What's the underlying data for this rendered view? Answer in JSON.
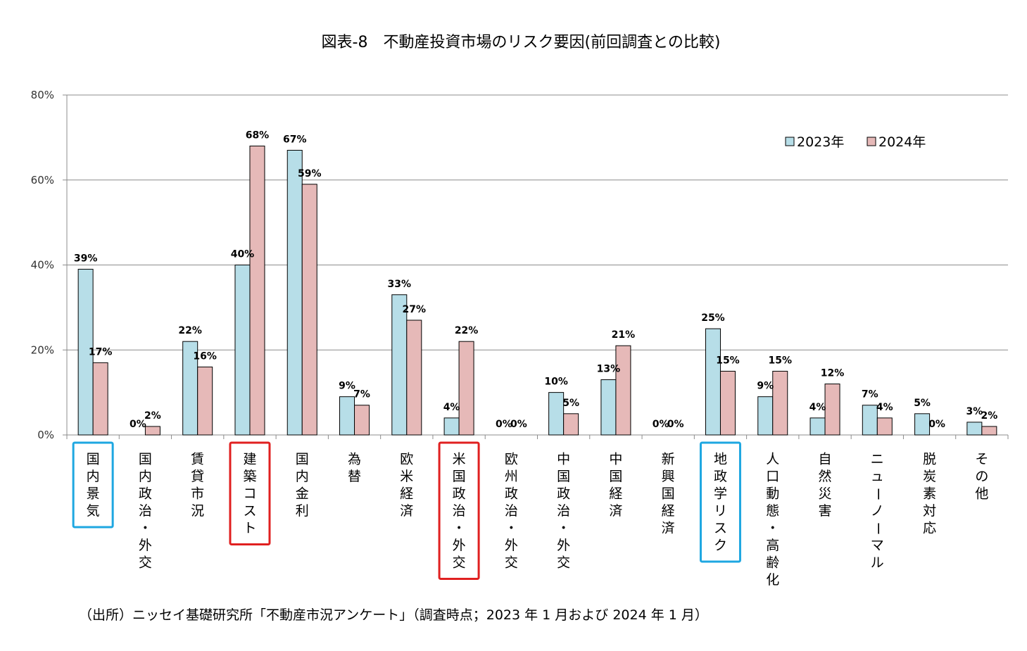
{
  "chart_data": {
    "type": "bar",
    "title": "図表-8　不動産投資市場のリスク要因(前回調査との比較)",
    "xlabel": "",
    "ylabel": "",
    "ylim": [
      0,
      80
    ],
    "yticks": [
      "0%",
      "20%",
      "40%",
      "60%",
      "80%"
    ],
    "grid": true,
    "legend_position": "top-right",
    "categories": [
      "国内景気",
      "国内政治・外交",
      "賃貸市況",
      "建築コスト",
      "国内金利",
      "為替",
      "欧米経済",
      "米国政治・外交",
      "欧州政治・外交",
      "中国政治・外交",
      "中国経済",
      "新興国経済",
      "地政学リスク",
      "人口動態・高齢化",
      "自然災害",
      "ニューノーマル",
      "脱炭素対応",
      "その他"
    ],
    "series": [
      {
        "name": "2023年",
        "color": "#B7DEE8",
        "values": [
          39,
          0,
          22,
          40,
          67,
          9,
          33,
          4,
          0,
          10,
          13,
          0,
          25,
          9,
          4,
          7,
          5,
          3
        ],
        "labels": [
          "39%",
          "0%",
          "22%",
          "40%",
          "67%",
          "9%",
          "33%",
          "4%",
          "0%",
          "10%",
          "13%",
          "0%",
          "25%",
          "9%",
          "4%",
          "7%",
          "5%",
          "3%"
        ]
      },
      {
        "name": "2024年",
        "color": "#E6B9B8",
        "values": [
          17,
          2,
          16,
          68,
          59,
          7,
          27,
          22,
          0,
          5,
          21,
          0,
          15,
          15,
          12,
          4,
          0,
          2
        ],
        "labels": [
          "17%",
          "2%",
          "16%",
          "68%",
          "59%",
          "7%",
          "27%",
          "22%",
          "0%",
          "5%",
          "21%",
          "0%",
          "15%",
          "15%",
          "12%",
          "4%",
          "0%",
          "2%"
        ]
      }
    ],
    "highlight_boxes": [
      {
        "category": "国内景気",
        "color": "#1EA7E1"
      },
      {
        "category": "建築コスト",
        "color": "#E02020"
      },
      {
        "category": "米国政治・外交",
        "color": "#E02020"
      },
      {
        "category": "地政学リスク",
        "color": "#1EA7E1"
      }
    ],
    "source": "（出所）ニッセイ基礎研究所「不動産市況アンケート」（調査時点；2023 年 1 月および 2024 年 1 月）"
  }
}
